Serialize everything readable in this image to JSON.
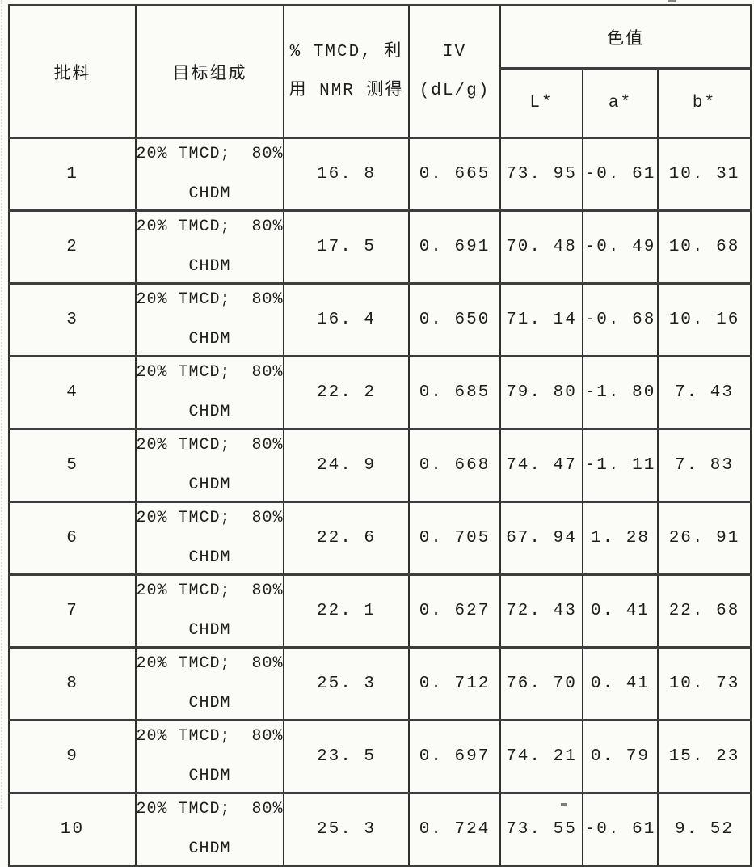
{
  "table": {
    "header": {
      "batch": "批料",
      "composition": "目标组成",
      "tmcd_line1": "% TMCD, 利",
      "tmcd_line2": "用 NMR 测得",
      "iv_line1": "IV",
      "iv_line2": "(dL/g)",
      "color_value": "色值",
      "l_star": "L*",
      "a_star": "a*",
      "b_star": "b*"
    },
    "rows": [
      {
        "batch": "1",
        "comp": [
          "20% TMCD;  80%",
          "CHDM"
        ],
        "tmcd": "16. 8",
        "iv": "0. 665",
        "l": "73. 95",
        "a": "-0. 61",
        "b": "10. 31"
      },
      {
        "batch": "2",
        "comp": [
          "20% TMCD;  80%",
          "CHDM"
        ],
        "tmcd": "17. 5",
        "iv": "0. 691",
        "l": "70. 48",
        "a": "-0. 49",
        "b": "10. 68"
      },
      {
        "batch": "3",
        "comp": [
          "20% TMCD;  80%",
          "CHDM"
        ],
        "tmcd": "16. 4",
        "iv": "0. 650",
        "l": "71. 14",
        "a": "-0. 68",
        "b": "10. 16"
      },
      {
        "batch": "4",
        "comp": [
          "20% TMCD;  80%",
          "CHDM"
        ],
        "tmcd": "22. 2",
        "iv": "0. 685",
        "l": "79. 80",
        "a": "-1. 80",
        "b": "7. 43"
      },
      {
        "batch": "5",
        "comp": [
          "20% TMCD;  80%",
          "CHDM"
        ],
        "tmcd": "24. 9",
        "iv": "0. 668",
        "l": "74. 47",
        "a": "-1. 11",
        "b": "7. 83"
      },
      {
        "batch": "6",
        "comp": [
          "20% TMCD;  80%",
          "CHDM"
        ],
        "tmcd": "22. 6",
        "iv": "0. 705",
        "l": "67. 94",
        "a": "1. 28",
        "b": "26. 91"
      },
      {
        "batch": "7",
        "comp": [
          "20% TMCD;  80%",
          "CHDM"
        ],
        "tmcd": "22. 1",
        "iv": "0. 627",
        "l": "72. 43",
        "a": "0. 41",
        "b": "22. 68"
      },
      {
        "batch": "8",
        "comp": [
          "20% TMCD;  80%",
          "CHDM"
        ],
        "tmcd": "25. 3",
        "iv": "0. 712",
        "l": "76. 70",
        "a": "0. 41",
        "b": "10. 73"
      },
      {
        "batch": "9",
        "comp": [
          "20% TMCD;  80%",
          "CHDM"
        ],
        "tmcd": "23. 5",
        "iv": "0. 697",
        "l": "74. 21",
        "a": "0. 79",
        "b": "15. 23"
      },
      {
        "batch": "10",
        "comp": [
          "20% TMCD;  80%",
          "CHDM"
        ],
        "tmcd": "25. 3",
        "iv": "0. 724",
        "l": "73. 55",
        "a": "-0. 61",
        "b": "9. 52"
      }
    ]
  }
}
